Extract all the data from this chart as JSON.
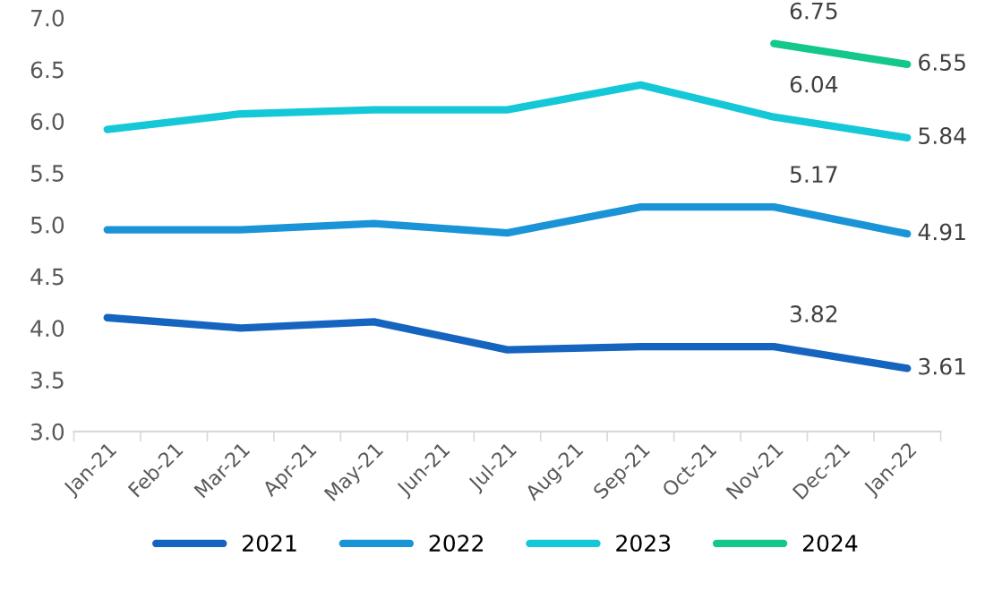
{
  "chart_data": {
    "type": "line",
    "categories": [
      "Jan-21",
      "Feb-21",
      "Mar-21",
      "Apr-21",
      "May-21",
      "Jun-21",
      "Jul-21",
      "Aug-21",
      "Sep-21",
      "Oct-21",
      "Nov-21",
      "Dec-21",
      "Jan-22"
    ],
    "series": [
      {
        "name": "2021",
        "color": "#1565c0",
        "values": [
          4.1,
          null,
          4.0,
          null,
          4.06,
          null,
          3.79,
          null,
          3.82,
          null,
          3.82,
          null,
          3.61
        ],
        "value_labels": [
          null,
          null,
          null,
          null,
          null,
          null,
          null,
          null,
          null,
          null,
          "3.82",
          null,
          "3.61"
        ]
      },
      {
        "name": "2022",
        "color": "#1a94d6",
        "values": [
          4.95,
          null,
          4.95,
          null,
          5.01,
          null,
          4.92,
          null,
          5.17,
          null,
          5.17,
          null,
          4.91
        ],
        "value_labels": [
          null,
          null,
          null,
          null,
          null,
          null,
          null,
          null,
          null,
          null,
          "5.17",
          null,
          "4.91"
        ]
      },
      {
        "name": "2023",
        "color": "#14c8d8",
        "values": [
          5.92,
          null,
          6.07,
          null,
          6.11,
          null,
          6.11,
          null,
          6.35,
          null,
          6.04,
          null,
          5.84
        ],
        "value_labels": [
          null,
          null,
          null,
          null,
          null,
          null,
          null,
          null,
          null,
          null,
          "6.04",
          null,
          "5.84"
        ]
      },
      {
        "name": "2024",
        "color": "#14c88c",
        "values": [
          null,
          null,
          null,
          null,
          null,
          null,
          null,
          null,
          null,
          null,
          6.75,
          null,
          6.55
        ],
        "value_labels": [
          null,
          null,
          null,
          null,
          null,
          null,
          null,
          null,
          null,
          null,
          "6.75",
          null,
          "6.55"
        ]
      }
    ],
    "ylim": [
      3.0,
      7.0
    ],
    "yticks": [
      {
        "value": 3.0,
        "label": "3.0"
      },
      {
        "value": 3.5,
        "label": "3.5"
      },
      {
        "value": 4.0,
        "label": "4.0"
      },
      {
        "value": 4.5,
        "label": "4.5"
      },
      {
        "value": 5.0,
        "label": "5.0"
      },
      {
        "value": 5.5,
        "label": "5.5"
      },
      {
        "value": 6.0,
        "label": "6.0"
      },
      {
        "value": 6.5,
        "label": "6.5"
      },
      {
        "value": 7.0,
        "label": "7.0"
      }
    ],
    "grid": false,
    "legend": "bottom",
    "marker": "none",
    "line_style": "solid"
  }
}
